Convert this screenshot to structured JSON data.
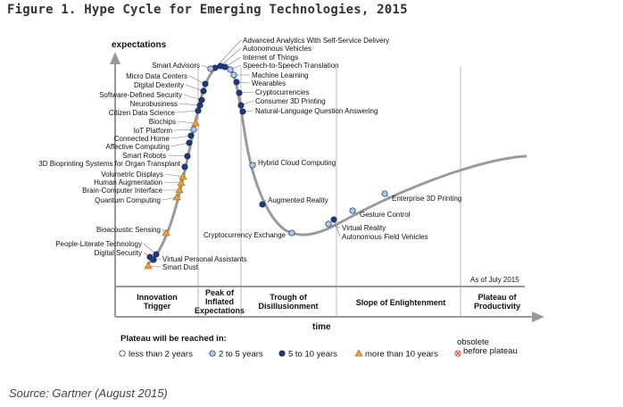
{
  "figure": {
    "title": "Figure 1. Hype Cycle for Emerging Technologies, 2015",
    "source": "Source: Gartner (August 2015)"
  },
  "axes": {
    "y_label": "expectations",
    "x_label": "time",
    "note": "As of July 2015"
  },
  "phases": [
    {
      "id": "innovation",
      "lines": [
        "Innovation",
        "Trigger"
      ]
    },
    {
      "id": "peak",
      "lines": [
        "Peak of",
        "Inflated",
        "Expectations"
      ]
    },
    {
      "id": "trough",
      "lines": [
        "Trough of",
        "Disillusionment"
      ]
    },
    {
      "id": "slope",
      "lines": [
        "Slope of Enlightenment"
      ]
    },
    {
      "id": "plateau",
      "lines": [
        "Plateau of",
        "Productivity"
      ]
    }
  ],
  "legend": {
    "title": "Plateau will be reached in:",
    "items": [
      {
        "id": "lt2",
        "label": "less than 2 years",
        "color": "#ffffff"
      },
      {
        "id": "2to5",
        "label": "2 to 5 years",
        "color": "#a9cbe8"
      },
      {
        "id": "5to10",
        "label": "5 to 10 years",
        "color": "#1f3a7a"
      },
      {
        "id": "gt10",
        "label": "more than 10 years",
        "color": "#f0a030"
      },
      {
        "id": "obsolete",
        "label_lines": [
          "obsolete",
          "before plateau"
        ],
        "color": "#e08080"
      }
    ]
  },
  "technologies": [
    {
      "name": "Advanced Analytics With Self-Service Delivery",
      "category": "5to10"
    },
    {
      "name": "Autonomous Vehicles",
      "category": "5to10"
    },
    {
      "name": "Internet of Things",
      "category": "5to10"
    },
    {
      "name": "Speech-to-Speech Translation",
      "category": "2to5"
    },
    {
      "name": "Machine Learning",
      "category": "2to5"
    },
    {
      "name": "Wearables",
      "category": "5to10"
    },
    {
      "name": "Cryptocurrencies",
      "category": "5to10"
    },
    {
      "name": "Consumer 3D Printing",
      "category": "5to10"
    },
    {
      "name": "Natural-Language Question Answering",
      "category": "5to10"
    },
    {
      "name": "Smart Advisors",
      "category": "2to5"
    },
    {
      "name": "Micro Data Centers",
      "category": "5to10"
    },
    {
      "name": "Digital Dexterity",
      "category": "5to10"
    },
    {
      "name": "Software-Defined Security",
      "category": "5to10"
    },
    {
      "name": "Neurobusiness",
      "category": "5to10"
    },
    {
      "name": "Citizen Data Science",
      "category": "5to10"
    },
    {
      "name": "Biochips",
      "category": "gt10"
    },
    {
      "name": "IoT Platform",
      "category": "2to5"
    },
    {
      "name": "Connected Home",
      "category": "5to10"
    },
    {
      "name": "Affective Computing",
      "category": "5to10"
    },
    {
      "name": "Smart Robots",
      "category": "5to10"
    },
    {
      "name": "3D Bioprinting Systems for Organ Transplant",
      "category": "5to10"
    },
    {
      "name": "Volumetric Displays",
      "category": "gt10"
    },
    {
      "name": "Human Augmentation",
      "category": "gt10"
    },
    {
      "name": "Brain-Computer Interface",
      "category": "gt10"
    },
    {
      "name": "Quantum Computing",
      "category": "gt10"
    },
    {
      "name": "Bioacoustic Sensing",
      "category": "gt10"
    },
    {
      "name": "People-Literate Technology",
      "category": "5to10"
    },
    {
      "name": "Digital Security",
      "category": "5to10"
    },
    {
      "name": "Virtual Personal Assistants",
      "category": "5to10"
    },
    {
      "name": "Smart Dust",
      "category": "gt10"
    },
    {
      "name": "Hybrid Cloud Computing",
      "category": "2to5"
    },
    {
      "name": "Augmented Reality",
      "category": "5to10"
    },
    {
      "name": "Cryptocurrency Exchange",
      "category": "2to5"
    },
    {
      "name": "Virtual Reality",
      "category": "2to5"
    },
    {
      "name": "Autonomous Field Vehicles",
      "category": "5to10"
    },
    {
      "name": "Gesture Control",
      "category": "2to5"
    },
    {
      "name": "Enterprise 3D Printing",
      "category": "2to5"
    }
  ]
}
